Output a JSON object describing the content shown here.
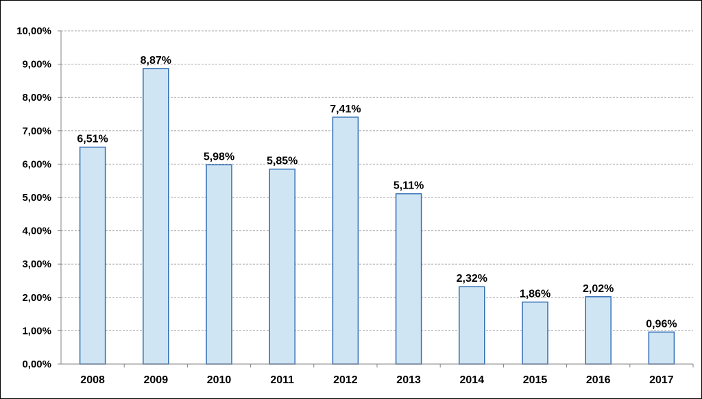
{
  "chart_data": {
    "type": "bar",
    "title": "",
    "xlabel": "",
    "ylabel": "",
    "categories": [
      "2008",
      "2009",
      "2010",
      "2011",
      "2012",
      "2013",
      "2014",
      "2015",
      "2016",
      "2017"
    ],
    "values": [
      6.51,
      8.87,
      5.98,
      5.85,
      7.41,
      5.11,
      2.32,
      1.86,
      2.02,
      0.96
    ],
    "data_labels": [
      "6,51%",
      "8,87%",
      "5,98%",
      "5,85%",
      "7,41%",
      "5,11%",
      "2,32%",
      "1,86%",
      "2,02%",
      "0,96%"
    ],
    "ylim": [
      0,
      10
    ],
    "yticks": [
      0,
      1,
      2,
      3,
      4,
      5,
      6,
      7,
      8,
      9,
      10
    ],
    "ytick_labels": [
      "0,00%",
      "1,00%",
      "2,00%",
      "3,00%",
      "4,00%",
      "5,00%",
      "6,00%",
      "7,00%",
      "8,00%",
      "9,00%",
      "10,00%"
    ],
    "grid": true,
    "legend": "none",
    "colors": {
      "bar_fill": "#cfe5f3",
      "bar_stroke": "#2e6cb5",
      "grid": "#a6a6a6",
      "axis": "#808080"
    }
  }
}
